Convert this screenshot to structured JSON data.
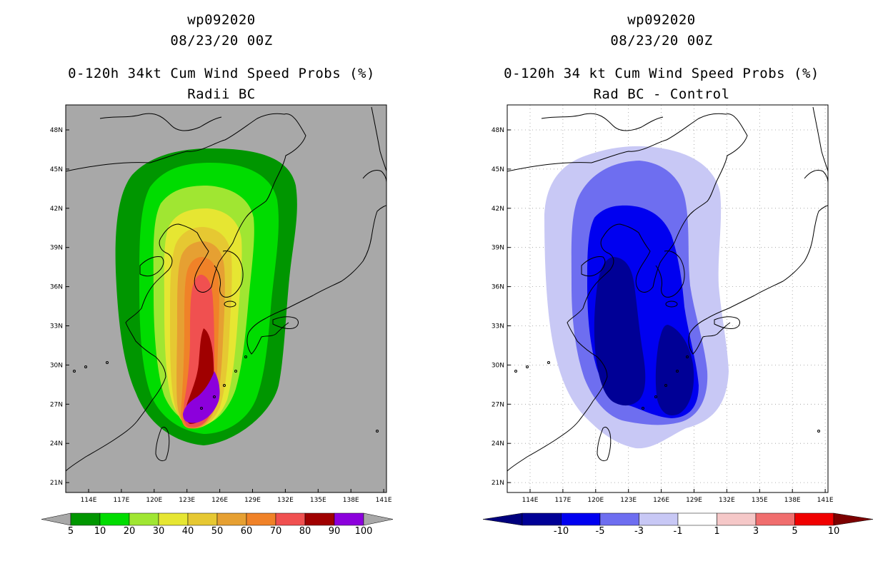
{
  "left_panel": {
    "storm_id": "wp092020",
    "datetime": "08/23/20 00Z",
    "product": "0-120h 34kt Cum Wind Speed Probs (%)",
    "subtitle": "Radii BC",
    "lat_labels": [
      "48N",
      "45N",
      "42N",
      "39N",
      "36N",
      "33N",
      "30N",
      "27N",
      "24N",
      "21N"
    ],
    "lon_labels": [
      "114E",
      "117E",
      "120E",
      "123E",
      "126E",
      "129E",
      "132E",
      "135E",
      "138E",
      "141E"
    ],
    "colorbar": {
      "labels": [
        "5",
        "10",
        "20",
        "30",
        "40",
        "50",
        "60",
        "70",
        "80",
        "90",
        "100"
      ],
      "colors": [
        "#009600",
        "#00dc00",
        "#a0e632",
        "#e6e632",
        "#e6c832",
        "#e6a032",
        "#f08228",
        "#f05050",
        "#a00000",
        "#8c00dc"
      ]
    }
  },
  "right_panel": {
    "storm_id": "wp092020",
    "datetime": "08/23/20 00Z",
    "product": "0-120h 34 kt Cum Wind Speed Probs (%)",
    "subtitle": "Rad BC - Control",
    "lat_labels": [
      "48N",
      "45N",
      "42N",
      "39N",
      "36N",
      "33N",
      "30N",
      "27N",
      "24N",
      "21N"
    ],
    "lon_labels": [
      "114E",
      "117E",
      "120E",
      "123E",
      "126E",
      "129E",
      "132E",
      "135E",
      "138E",
      "141E"
    ],
    "colorbar": {
      "labels": [
        "-10",
        "-5",
        "-3",
        "-1",
        "1",
        "3",
        "5",
        "10"
      ],
      "colors": [
        "#000096",
        "#0000f0",
        "#6e6ef0",
        "#c8c8f5",
        "#ffffff",
        "#f5c8c8",
        "#f06e6e",
        "#f00000"
      ],
      "end_colors": [
        "#00007d",
        "#7d0000"
      ]
    }
  }
}
